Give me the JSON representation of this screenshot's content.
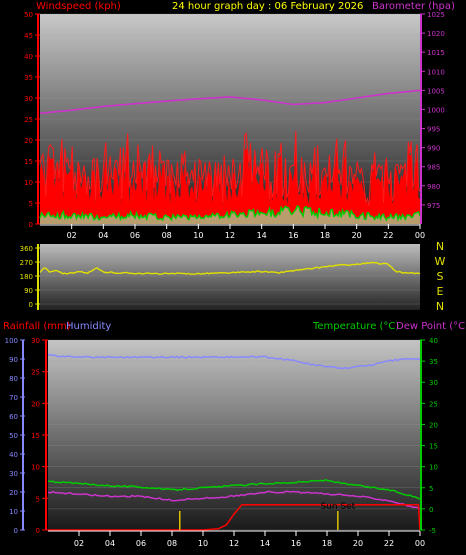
{
  "header": {
    "left_label": "Windspeed (kph)",
    "center_label": "24 hour graph day : 06 February 2026",
    "right_label": "Barometer (hpa)"
  },
  "panel3_header": {
    "rainfall_label": "Rainfall (mm)",
    "humidity_label": "Humidity",
    "temperature_label": "Temperature (°C)",
    "dewpoint_label": "Dew Point (°C)"
  },
  "sunset_label": "Sun Set",
  "colors": {
    "wind_axis": "#ff0000",
    "baro": "#cc33cc",
    "title": "#ffff00",
    "wind_fill": "#ff0000",
    "gust_line": "#ff1a1a",
    "avg_wind": "#00cc00",
    "wind_dir": "#e0e000",
    "rainfall": "#ff0000",
    "humidity": "#8888ff",
    "temperature": "#00cc00",
    "dewpoint": "#cc33cc",
    "time_ticks": "#ffffff"
  },
  "chart_data": [
    {
      "type": "area",
      "id": "wind_baro",
      "x_ticks": [
        "02",
        "04",
        "06",
        "08",
        "10",
        "12",
        "14",
        "16",
        "18",
        "20",
        "22",
        "00"
      ],
      "y_left": {
        "label": "Windspeed (kph)",
        "range": [
          0,
          50
        ],
        "ticks": [
          "0",
          "5",
          "10",
          "15",
          "20",
          "25",
          "30",
          "35",
          "40",
          "45",
          "50"
        ]
      },
      "y_right": {
        "label": "Barometer (hpa)",
        "range": [
          970,
          1025
        ],
        "ticks": [
          "975",
          "980",
          "985",
          "990",
          "995",
          "1000",
          "1005",
          "1010",
          "1015",
          "1020",
          "1025"
        ]
      },
      "grid": true,
      "series": [
        {
          "axis": "right",
          "x": [
            0,
            2,
            4,
            6,
            8,
            10,
            12,
            14,
            16,
            18,
            20,
            22,
            24
          ],
          "values": [
            999.0,
            999.8,
            1000.8,
            1001.5,
            1002.2,
            1002.8,
            1003.3,
            1002.5,
            1001.3,
            1001.8,
            1003.0,
            1004.2,
            1005.0
          ]
        },
        {
          "axis": "left",
          "x": [
            0,
            1,
            2,
            3,
            4,
            5,
            6,
            7,
            8,
            9,
            10,
            11,
            12,
            13,
            14,
            15,
            16,
            17,
            18,
            19,
            20,
            21,
            22,
            23,
            24
          ],
          "values": [
            13,
            14,
            12,
            11,
            13,
            12,
            13,
            12,
            13,
            12,
            10,
            11,
            12,
            14,
            13,
            12,
            13,
            12,
            11,
            13,
            10,
            11,
            12,
            13,
            12
          ]
        },
        {
          "axis": "left",
          "x": [
            0,
            2,
            4,
            6,
            8,
            10,
            12,
            14,
            16,
            18,
            20,
            22,
            24
          ],
          "values": [
            2,
            2,
            1.5,
            2,
            1.5,
            1.5,
            2,
            2.5,
            3,
            2.5,
            2,
            1.5,
            2
          ]
        }
      ]
    },
    {
      "type": "line",
      "id": "wind_direction",
      "y_ticks": [
        "360",
        "270",
        "180",
        "90",
        "0"
      ],
      "y_range": [
        0,
        360
      ],
      "compass": [
        "N",
        "W",
        "S",
        "E",
        "N"
      ],
      "x": [
        0,
        0.3,
        0.6,
        1,
        1.5,
        2,
        2.5,
        3,
        3.3,
        3.6,
        4,
        5,
        6,
        7,
        8,
        9,
        10,
        11,
        12,
        13,
        14,
        15,
        16,
        17,
        18,
        19,
        20,
        21,
        22,
        22.5,
        23,
        24
      ],
      "values": [
        200,
        240,
        205,
        220,
        195,
        200,
        210,
        195,
        215,
        230,
        205,
        200,
        198,
        195,
        195,
        195,
        195,
        198,
        200,
        205,
        210,
        200,
        215,
        225,
        240,
        250,
        255,
        265,
        255,
        210,
        200,
        195
      ]
    },
    {
      "type": "line",
      "id": "temp_rain",
      "x_ticks": [
        "02",
        "04",
        "06",
        "08",
        "10",
        "12",
        "14",
        "16",
        "18",
        "20",
        "22",
        "00"
      ],
      "y_humidity": {
        "range": [
          0,
          100
        ],
        "ticks": [
          "0",
          "10",
          "20",
          "30",
          "40",
          "50",
          "60",
          "70",
          "80",
          "90",
          "100"
        ]
      },
      "y_rain": {
        "label": "Rainfall (mm)",
        "range": [
          0,
          30
        ],
        "ticks": [
          "0",
          "5",
          "10",
          "15",
          "20",
          "25",
          "30"
        ]
      },
      "y_temp": {
        "label": "Temperature (°C)",
        "range": [
          -5,
          40
        ],
        "ticks": [
          "-5",
          "0",
          "5",
          "10",
          "15",
          "20",
          "25",
          "30",
          "35",
          "40"
        ]
      },
      "grid": true,
      "series": [
        {
          "name": "Humidity",
          "x": [
            0,
            2,
            4,
            6,
            8,
            10,
            12,
            14,
            15,
            16,
            17,
            18,
            19,
            20,
            21,
            22,
            23,
            24
          ],
          "values": [
            92,
            91,
            91,
            91,
            91,
            91,
            91,
            91,
            90,
            89,
            87,
            86,
            85,
            86,
            87,
            89,
            90,
            90
          ]
        },
        {
          "name": "Temperature",
          "x": [
            0,
            2,
            4,
            6,
            8,
            10,
            12,
            14,
            16,
            18,
            19,
            20,
            21,
            22,
            23,
            24
          ],
          "values": [
            6.5,
            6.0,
            5.5,
            5.2,
            4.5,
            5.0,
            5.5,
            6.0,
            6.3,
            6.8,
            6.0,
            5.5,
            5.0,
            4.5,
            3.5,
            2.5
          ]
        },
        {
          "name": "Dew Point",
          "x": [
            0,
            2,
            4,
            6,
            8,
            10,
            12,
            14,
            16,
            18,
            20,
            22,
            23,
            24
          ],
          "values": [
            4.0,
            3.5,
            3.0,
            3.0,
            2.0,
            2.5,
            3.0,
            4.0,
            4.0,
            3.5,
            3.0,
            2.0,
            1.0,
            0.0
          ]
        },
        {
          "name": "Rainfall",
          "x": [
            0,
            2,
            4,
            6,
            8,
            10,
            11,
            11.5,
            12,
            12.5,
            14,
            16,
            18,
            20,
            22,
            23.9,
            24
          ],
          "values": [
            0,
            0,
            0,
            0,
            0,
            0,
            0.2,
            0.8,
            2.5,
            4,
            4,
            4,
            4,
            4,
            4,
            4,
            0
          ]
        }
      ],
      "markers": [
        {
          "x": 8.5,
          "color": "#e0c000"
        },
        {
          "x": 18.7,
          "color": "#e0c000",
          "label": "Sun Set"
        }
      ]
    }
  ]
}
